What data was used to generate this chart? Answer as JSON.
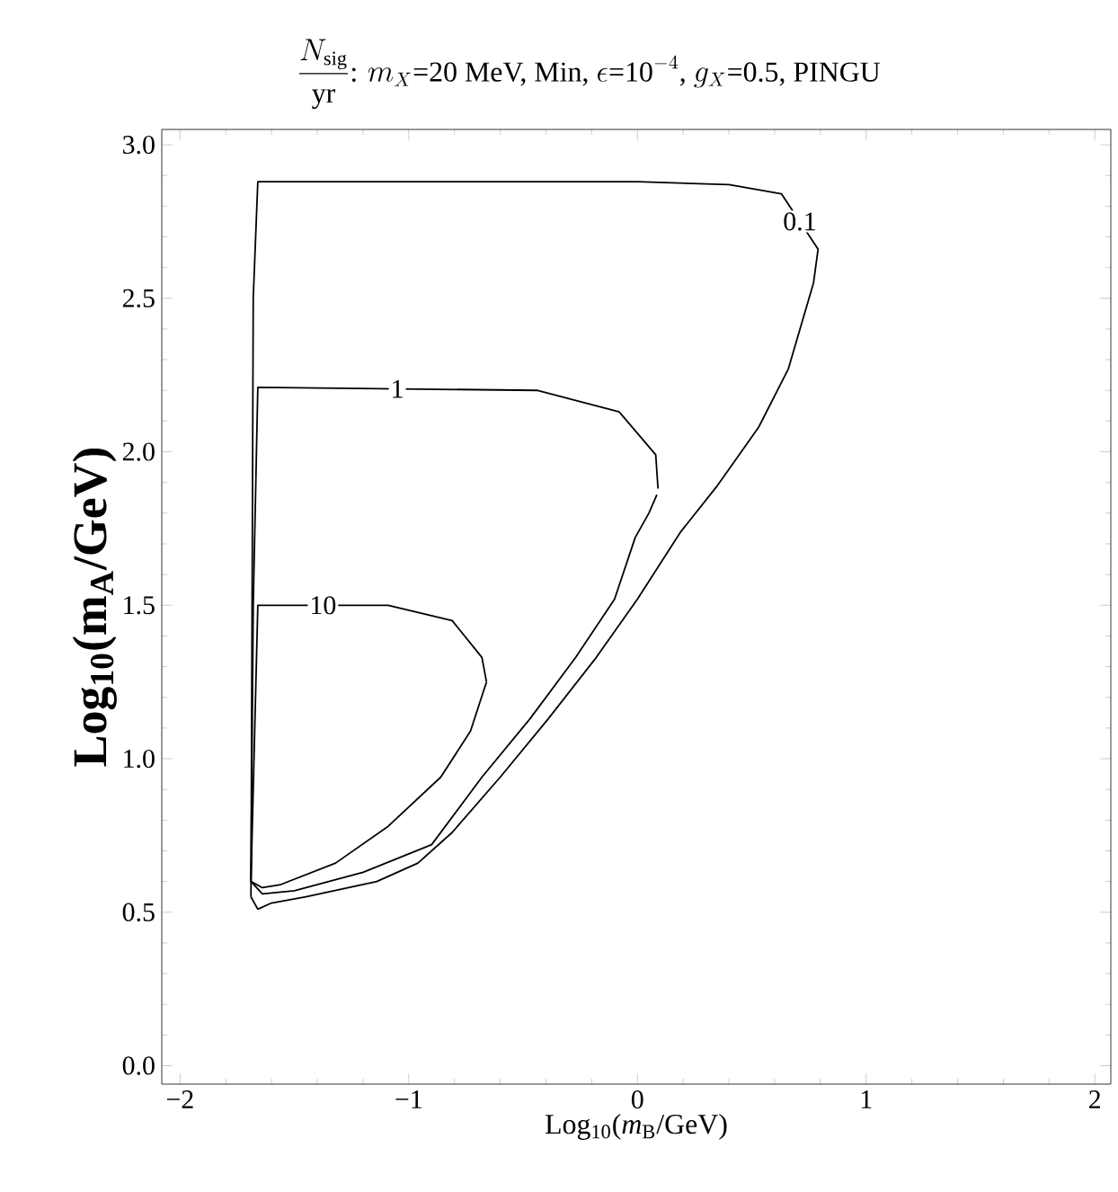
{
  "chart_data": {
    "type": "line",
    "title": "\\frac{N_{\\mathrm{sig}}}{\\mathrm{yr}}\\text{: }m_X\\text{=20 MeV, Min, }\\epsilon\\text{=10}^{-4}\\text{, }g_X\\text{=0.5, PINGU}",
    "xlabel": "Log$_{10}$(*m*$_{B}$/GeV)",
    "ylabel": "Log$_{10}$(m$_{A}$/GeV)",
    "xlim": [
      -2.08,
      2.07
    ],
    "ylim": [
      -0.06,
      3.05
    ],
    "xticks": [
      {
        "value": -2,
        "label": "−2"
      },
      {
        "value": -1,
        "label": "−1"
      },
      0,
      1,
      2
    ],
    "yticks": [
      {
        "value": 0,
        "label": "0.0"
      },
      {
        "value": 0.5,
        "label": "0.5"
      },
      {
        "value": 1,
        "label": "1.0"
      },
      {
        "value": 1.5,
        "label": "1.5"
      },
      {
        "value": 2,
        "label": "2.0"
      },
      {
        "value": 2.5,
        "label": "2.5"
      },
      {
        "value": 3,
        "label": "3.0"
      }
    ],
    "series": [
      {
        "name": "0.1",
        "color": "#000000",
        "x": [
          -1.69,
          -1.685,
          -1.68,
          -1.66,
          0.0,
          0.4,
          0.63,
          0.79
        ],
        "values": [
          0.55,
          1.5,
          2.5,
          2.88,
          2.88,
          2.87,
          2.84,
          2.66
        ]
      },
      {
        "color": "#000000",
        "x": [
          -1.69,
          -1.66,
          -1.6,
          -1.45,
          -1.14,
          -0.96,
          -0.81,
          -0.6,
          -0.39,
          -0.18,
          0.0,
          0.19,
          0.35,
          0.53,
          0.66,
          0.77,
          0.79
        ],
        "values": [
          0.55,
          0.51,
          0.53,
          0.55,
          0.6,
          0.66,
          0.76,
          0.94,
          1.13,
          1.33,
          1.52,
          1.74,
          1.89,
          2.08,
          2.27,
          2.55,
          2.66
        ]
      },
      {
        "name": "1",
        "color": "#000000",
        "x": [
          -1.69,
          -1.68,
          -1.66,
          -0.44,
          -0.08,
          0.08,
          0.09
        ],
        "values": [
          0.6,
          1.5,
          2.21,
          2.2,
          2.13,
          1.99,
          1.88
        ]
      },
      {
        "color": "#000000",
        "x": [
          -1.69,
          -1.64,
          -1.5,
          -1.2,
          -0.9,
          -0.68,
          -0.47,
          -0.27,
          -0.1,
          -0.01,
          0.05,
          0.085
        ],
        "values": [
          0.6,
          0.56,
          0.57,
          0.63,
          0.72,
          0.94,
          1.13,
          1.33,
          1.52,
          1.72,
          1.8,
          1.86
        ]
      },
      {
        "name": "10",
        "color": "#000000",
        "x": [
          -1.69,
          -1.66,
          -1.09,
          -0.81,
          -0.68,
          -0.66
        ],
        "values": [
          0.6,
          1.5,
          1.5,
          1.45,
          1.33,
          1.25
        ]
      },
      {
        "color": "#000000",
        "x": [
          -1.69,
          -1.64,
          -1.56,
          -1.32,
          -1.09,
          -0.86,
          -0.73,
          -0.66
        ],
        "values": [
          0.6,
          0.58,
          0.59,
          0.66,
          0.78,
          0.94,
          1.09,
          1.25
        ]
      }
    ]
  }
}
